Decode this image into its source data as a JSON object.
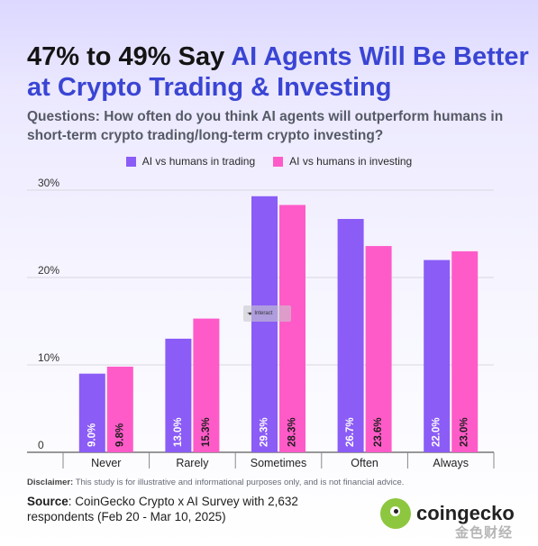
{
  "title": {
    "prefix": "47% to 49% Say ",
    "highlight": "AI Agents Will Be Better at Crypto Trading & Investing"
  },
  "question": "Questions: How often do you think AI agents will outperform humans in short-term crypto trading/long-term crypto investing?",
  "colors": {
    "trading": "#8b5cf6",
    "investing": "#ff5bc8",
    "accent": "#3a45d4"
  },
  "chart_data": {
    "type": "bar",
    "categories": [
      "Never",
      "Rarely",
      "Sometimes",
      "Often",
      "Always"
    ],
    "series": [
      {
        "name": "AI vs humans in trading",
        "values": [
          9.0,
          13.0,
          29.3,
          26.7,
          22.0
        ],
        "labels": [
          "9.0%",
          "13.0%",
          "29.3%",
          "26.7%",
          "22.0%"
        ]
      },
      {
        "name": "AI vs humans in investing",
        "values": [
          9.8,
          15.3,
          28.3,
          23.6,
          23.0
        ],
        "labels": [
          "9.8%",
          "15.3%",
          "28.3%",
          "23.6%",
          "23.0%"
        ]
      }
    ],
    "yticks": [
      "0",
      "10%",
      "20%",
      "30%"
    ],
    "ylim": [
      0,
      30
    ],
    "grid": true,
    "legend": "top-center"
  },
  "disclaimer": {
    "label": "Disclaimer:",
    "text": " This study is for illustrative and informational purposes only, and is not financial advice."
  },
  "source": {
    "label": "Source",
    "text": ": CoinGecko Crypto x AI Survey with 2,632 respondents (Feb 20 - Mar 10, 2025)"
  },
  "logo": {
    "text": "coingecko"
  },
  "watermark": "金色财经",
  "interact_tag": "Interact"
}
